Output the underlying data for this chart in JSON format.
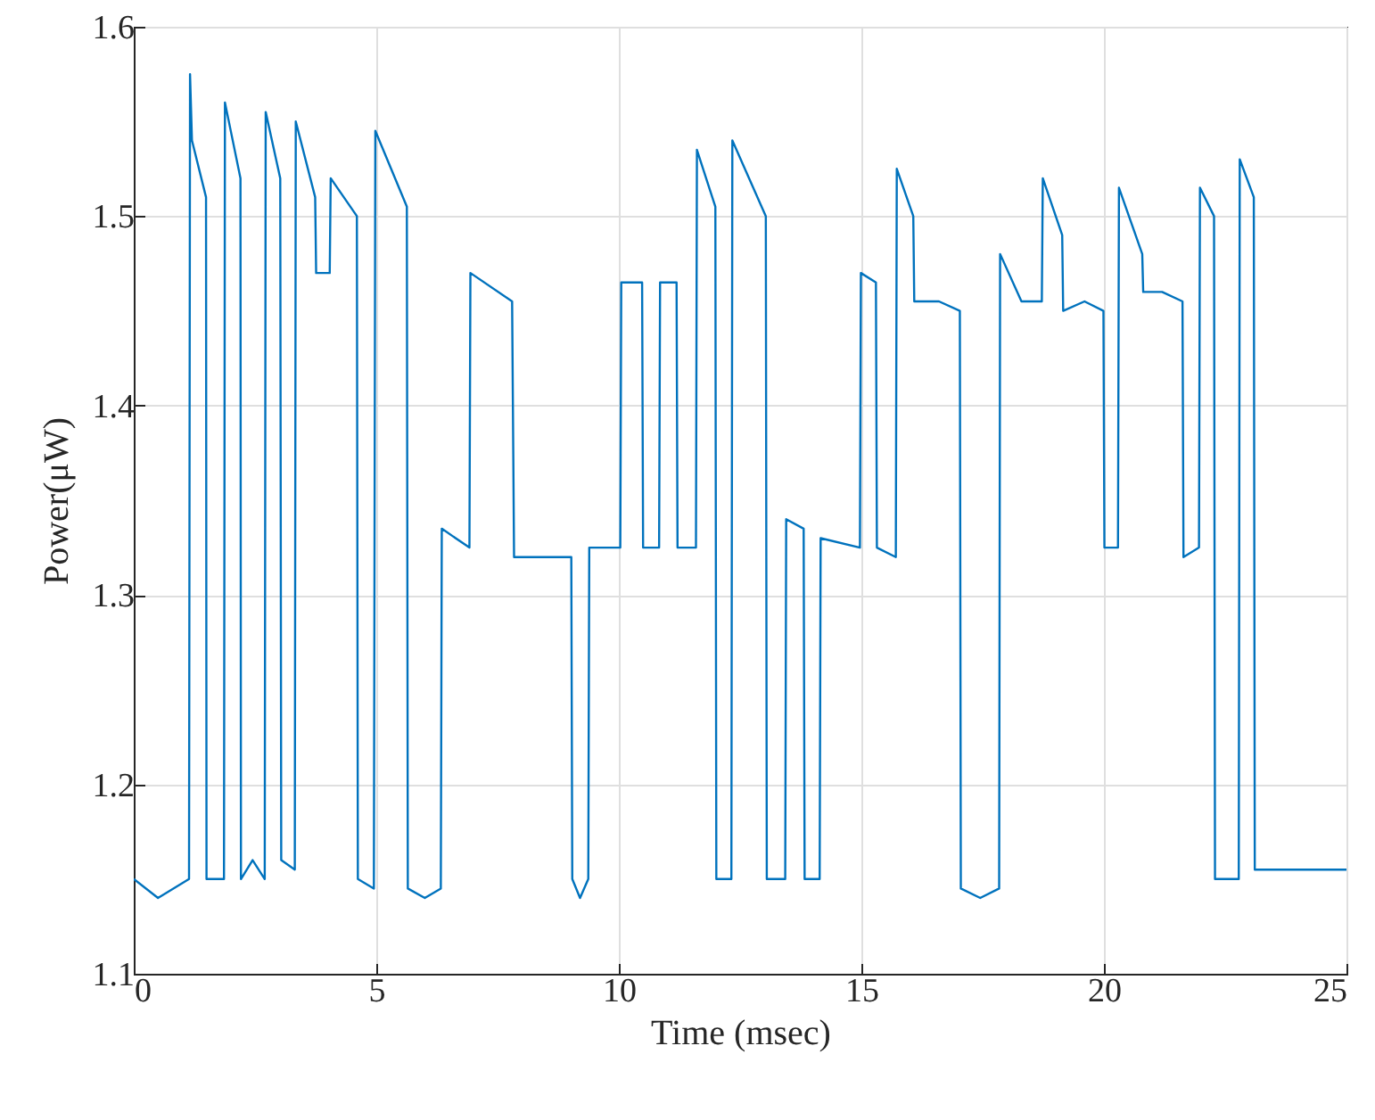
{
  "chart_data": {
    "type": "line",
    "xlabel": "Time (msec)",
    "ylabel": "Power(μW)",
    "xlim": [
      0,
      25
    ],
    "xticks": [
      0,
      5,
      10,
      15,
      20,
      25
    ],
    "ylim": [
      1.1,
      1.6
    ],
    "yticks": [
      1.1,
      1.2,
      1.3,
      1.4,
      1.5,
      1.6
    ],
    "grid": true,
    "series": [
      {
        "color": "#0072bd",
        "x": [
          0,
          0.5,
          1.14,
          1.16,
          1.2,
          1.49,
          1.5,
          1.86,
          1.88,
          2.2,
          2.21,
          2.45,
          2.7,
          2.72,
          3.02,
          3.04,
          3.32,
          3.34,
          3.74,
          3.76,
          4.04,
          4.06,
          4.6,
          4.62,
          4.95,
          4.98,
          5.63,
          5.65,
          6.0,
          6.33,
          6.35,
          6.92,
          6.94,
          7.8,
          7.84,
          8.5,
          9.02,
          9.04,
          9.2,
          9.37,
          9.39,
          10.03,
          10.05,
          10.48,
          10.5,
          10.83,
          10.85,
          11.19,
          11.21,
          11.59,
          11.61,
          11.99,
          12.01,
          12.32,
          12.34,
          13.03,
          13.05,
          13.43,
          13.45,
          13.81,
          13.83,
          14.14,
          14.16,
          14.97,
          14.99,
          15.3,
          15.32,
          15.71,
          15.73,
          16.07,
          16.09,
          16.6,
          17.03,
          17.05,
          17.45,
          17.84,
          17.86,
          18.3,
          18.72,
          18.74,
          19.14,
          19.16,
          19.6,
          19.99,
          20.01,
          20.29,
          20.31,
          20.79,
          20.81,
          21.2,
          21.62,
          21.64,
          21.96,
          21.98,
          22.27,
          22.29,
          22.78,
          22.8,
          23.09,
          23.11,
          24.0,
          25
        ],
        "values": [
          1.15,
          1.14,
          1.15,
          1.575,
          1.54,
          1.51,
          1.15,
          1.15,
          1.56,
          1.52,
          1.15,
          1.16,
          1.15,
          1.555,
          1.52,
          1.16,
          1.155,
          1.55,
          1.51,
          1.47,
          1.47,
          1.52,
          1.5,
          1.15,
          1.145,
          1.545,
          1.505,
          1.145,
          1.14,
          1.145,
          1.335,
          1.325,
          1.47,
          1.455,
          1.32,
          1.32,
          1.32,
          1.15,
          1.14,
          1.15,
          1.325,
          1.325,
          1.465,
          1.465,
          1.325,
          1.325,
          1.465,
          1.465,
          1.325,
          1.325,
          1.535,
          1.505,
          1.15,
          1.15,
          1.54,
          1.5,
          1.15,
          1.15,
          1.34,
          1.335,
          1.15,
          1.15,
          1.33,
          1.325,
          1.47,
          1.465,
          1.325,
          1.32,
          1.525,
          1.5,
          1.455,
          1.455,
          1.45,
          1.145,
          1.14,
          1.145,
          1.48,
          1.455,
          1.455,
          1.52,
          1.49,
          1.45,
          1.455,
          1.45,
          1.325,
          1.325,
          1.515,
          1.48,
          1.46,
          1.46,
          1.455,
          1.32,
          1.325,
          1.515,
          1.5,
          1.15,
          1.15,
          1.53,
          1.51,
          1.155,
          1.155,
          1.155
        ]
      }
    ]
  }
}
